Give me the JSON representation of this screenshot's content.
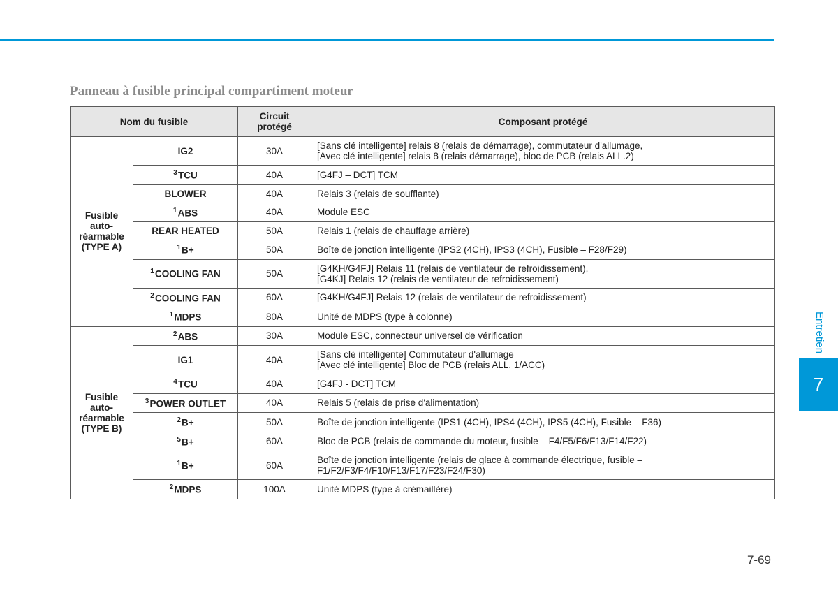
{
  "title": "Panneau à fusible principal compartiment moteur",
  "headers": {
    "name": "Nom du fusible",
    "circuit": "Circuit protégé",
    "component": "Composant protégé"
  },
  "groups": [
    {
      "label": "Fusible auto-réarmable (TYPE A)",
      "rows": [
        {
          "sup": "",
          "name": "IG2",
          "circuit": "30A",
          "comp": "[Sans clé intelligente] relais 8 (relais de démarrage), commutateur d'allumage,\n[Avec clé intelligente] relais 8 (relais démarrage), bloc de PCB (relais ALL.2)"
        },
        {
          "sup": "3",
          "name": "TCU",
          "circuit": "40A",
          "comp": "[G4FJ – DCT] TCM"
        },
        {
          "sup": "",
          "name": "BLOWER",
          "circuit": "40A",
          "comp": "Relais 3 (relais de soufflante)"
        },
        {
          "sup": "1",
          "name": "ABS",
          "circuit": "40A",
          "comp": "Module ESC"
        },
        {
          "sup": "",
          "name": "REAR HEATED",
          "circuit": "50A",
          "comp": "Relais 1 (relais de chauffage arrière)"
        },
        {
          "sup": "1",
          "name": "B+",
          "circuit": "50A",
          "comp": "Boîte de jonction intelligente (IPS2 (4CH), IPS3 (4CH), Fusible – F28/F29)"
        },
        {
          "sup": "1",
          "name": "COOLING FAN",
          "circuit": "50A",
          "comp": "[G4KH/G4FJ] Relais 11 (relais de ventilateur de refroidissement),\n[G4KJ] Relais 12 (relais de ventilateur de refroidissement)"
        },
        {
          "sup": "2",
          "name": "COOLING FAN",
          "circuit": "60A",
          "comp": "[G4KH/G4FJ] Relais 12 (relais de ventilateur de refroidissement)"
        },
        {
          "sup": "1",
          "name": "MDPS",
          "circuit": "80A",
          "comp": "Unité de MDPS (type à colonne)"
        }
      ]
    },
    {
      "label": "Fusible auto-réarmable (TYPE B)",
      "rows": [
        {
          "sup": "2",
          "name": "ABS",
          "circuit": "30A",
          "comp": "Module ESC, connecteur universel de vérification"
        },
        {
          "sup": "",
          "name": "IG1",
          "circuit": "40A",
          "comp": "[Sans clé intelligente] Commutateur d'allumage\n[Avec clé intelligente] Bloc de PCB (relais ALL. 1/ACC)"
        },
        {
          "sup": "4",
          "name": "TCU",
          "circuit": "40A",
          "comp": "[G4FJ - DCT] TCM"
        },
        {
          "sup": "3",
          "name": "POWER OUTLET",
          "circuit": "40A",
          "comp": "Relais 5 (relais de prise d'alimentation)"
        },
        {
          "sup": "2",
          "name": "B+",
          "circuit": "50A",
          "comp": "Boîte de jonction intelligente (IPS1 (4CH), IPS4 (4CH), IPS5 (4CH), Fusible – F36)"
        },
        {
          "sup": "5",
          "name": "B+",
          "circuit": "60A",
          "comp": "Bloc de PCB (relais de commande du moteur, fusible – F4/F5/F6/F13/F14/F22)"
        },
        {
          "sup": "1",
          "name": "B+",
          "circuit": "60A",
          "comp": "Boîte de jonction intelligente (relais de glace à commande électrique, fusible – F1/F2/F3/F4/F10/F13/F17/F23/F24/F30)"
        },
        {
          "sup": "2",
          "name": "MDPS",
          "circuit": "100A",
          "comp": "Unité MDPS (type à crémaillère)"
        }
      ]
    }
  ],
  "side": {
    "label": "Entretien",
    "chapter": "7"
  },
  "pagenum": "7-69",
  "colors": {
    "accent": "#0098d8",
    "header_bg": "#e6e6e6",
    "border": "#5a5a5a",
    "title_color": "#8a8a8a"
  }
}
